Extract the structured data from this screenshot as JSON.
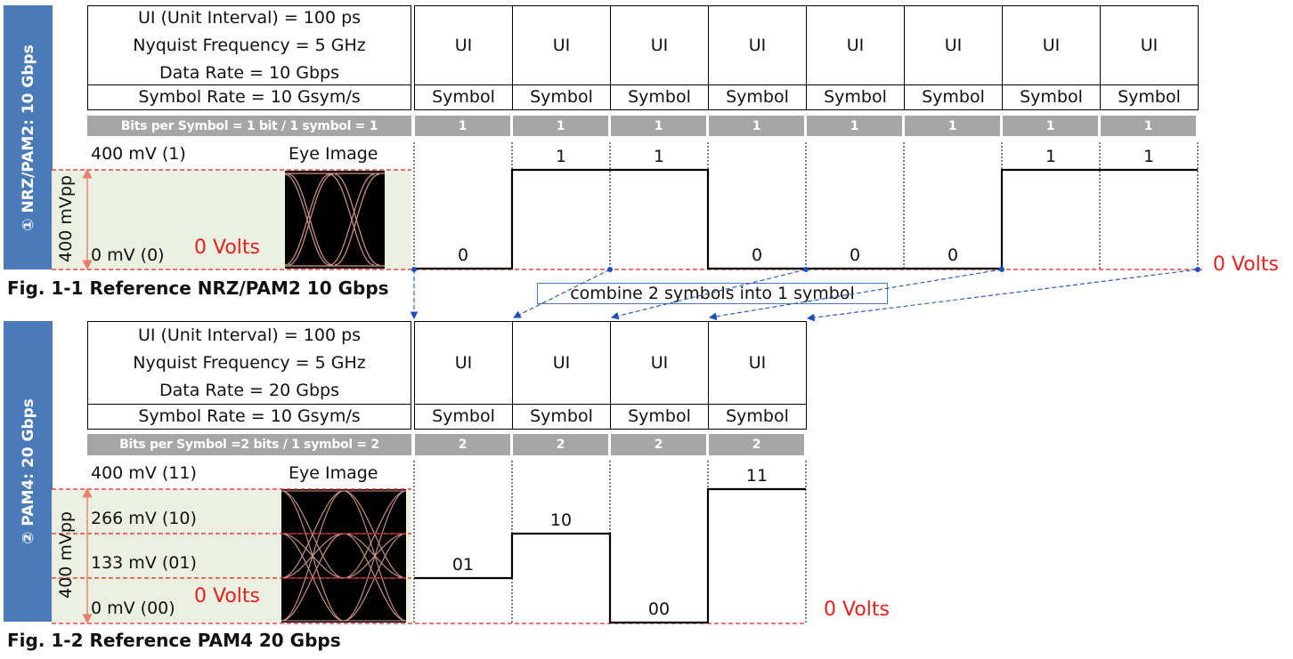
{
  "nrz": {
    "side_label": "① NRZ/PAM2: 10 Gbps",
    "ui_interval": "UI (Unit Interval) = 100 ps",
    "nyquist": "Nyquist Frequency = 5 GHz",
    "data_rate": "Data Rate = 10 Gbps",
    "symbol_rate": "Symbol Rate = 10 Gsym/s",
    "bits_per_symbol": "Bits per Symbol = 1 bit / 1 symbol = 1",
    "ui_cells": [
      "UI",
      "UI",
      "UI",
      "UI",
      "UI",
      "UI",
      "UI",
      "UI"
    ],
    "symbol_cells": [
      "Symbol",
      "Symbol",
      "Symbol",
      "Symbol",
      "Symbol",
      "Symbol",
      "Symbol",
      "Symbol"
    ],
    "bit_cells": [
      "1",
      "1",
      "1",
      "1",
      "1",
      "1",
      "1",
      "1"
    ],
    "top_level": "400 mV (1)",
    "eye_label": "Eye Image",
    "bottom_level": "0 mV (0)",
    "zero_volts": "0 Volts",
    "vpp": "400 mVpp",
    "bits": [
      "0",
      "1",
      "1",
      "0",
      "0",
      "0",
      "1",
      "1"
    ],
    "right_zero_volts": "0 Volts",
    "caption": "Fig. 1-1 Reference NRZ/PAM2 10 Gbps"
  },
  "callout": "combine 2 symbols into 1 symbol",
  "pam4": {
    "side_label": "② PAM4: 20 Gbps",
    "ui_interval": "UI (Unit Interval) = 100 ps",
    "nyquist": "Nyquist Frequency = 5 GHz",
    "data_rate": "Data Rate = 20 Gbps",
    "symbol_rate": "Symbol Rate = 10 Gsym/s",
    "bits_per_symbol": "Bits per Symbol =2 bits / 1 symbol = 2",
    "ui_cells": [
      "UI",
      "UI",
      "UI",
      "UI"
    ],
    "symbol_cells": [
      "Symbol",
      "Symbol",
      "Symbol",
      "Symbol"
    ],
    "bit_cells": [
      "2",
      "2",
      "2",
      "2"
    ],
    "level_11": "400 mV (11)",
    "eye_label": "Eye Image",
    "level_10": "266 mV (10)",
    "level_01": "133 mV (01)",
    "level_00": "0 mV (00)",
    "zero_volts": "0 Volts",
    "vpp": "400 mVpp",
    "symbols": [
      "01",
      "10",
      "00",
      "11"
    ],
    "right_zero_volts": "0 Volts",
    "caption": "Fig. 1-2 Reference PAM4 20 Gbps"
  },
  "colors": {
    "side_bar": "#4a7ab8",
    "gray_bar": "#a6a6a6",
    "ref_red": "#e82020",
    "panel": "#ebf0e0",
    "arrow_blue": "#1f4fbf"
  }
}
